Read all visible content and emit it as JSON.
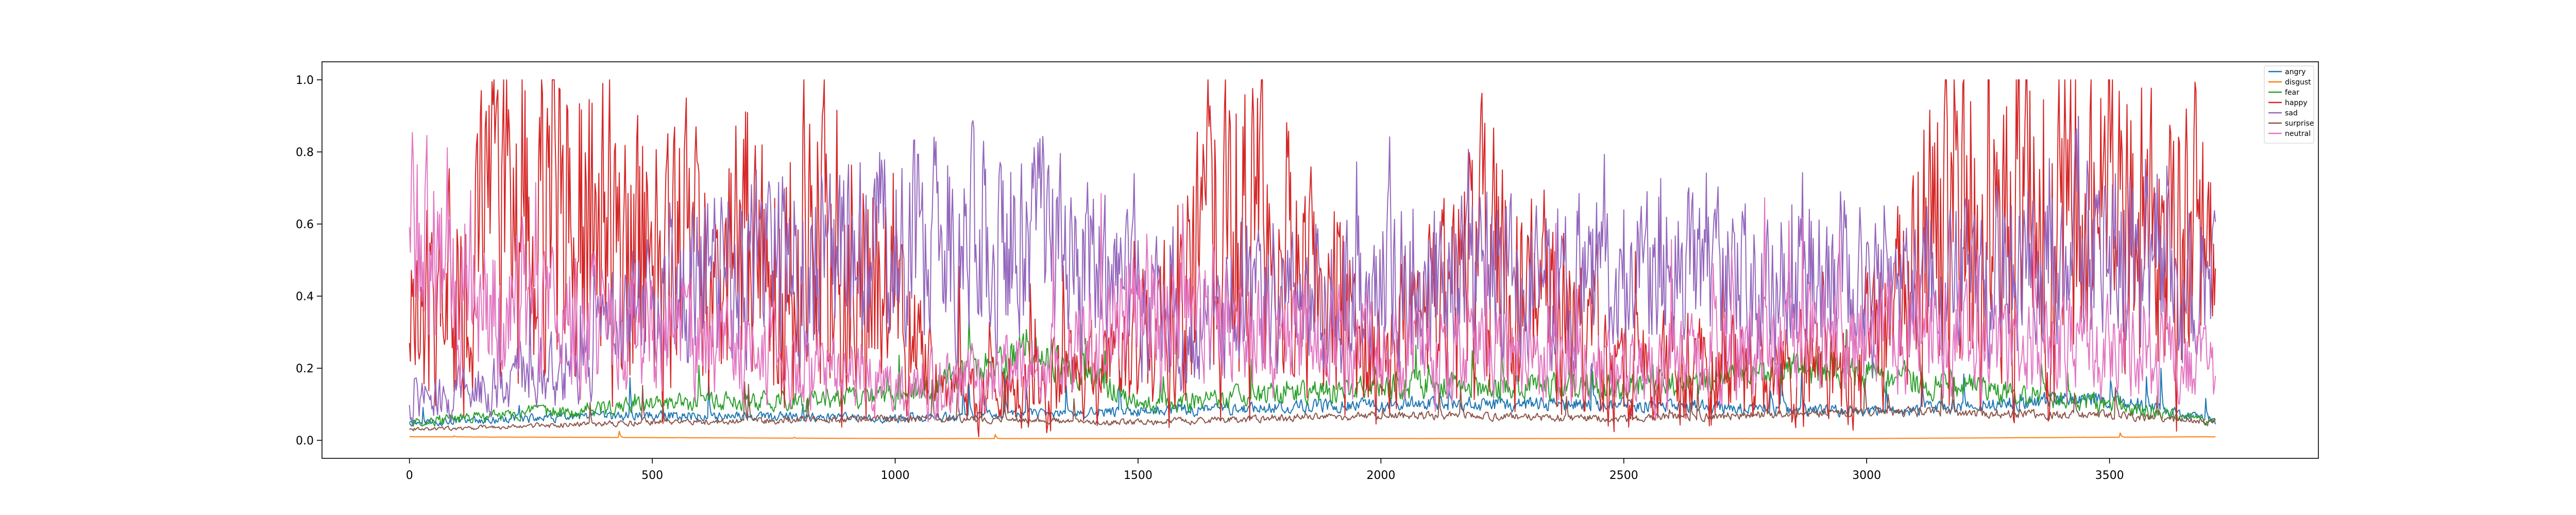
{
  "chart_data": {
    "type": "line",
    "title": "",
    "xlabel": "",
    "ylabel": "",
    "xlim": [
      -180,
      3930
    ],
    "ylim": [
      -0.05,
      1.05
    ],
    "x_ticks": [
      0,
      500,
      1000,
      1500,
      2000,
      2500,
      3000,
      3500
    ],
    "y_ticks": [
      0.0,
      0.2,
      0.4,
      0.6,
      0.8,
      1.0
    ],
    "x_tick_labels": [
      "0",
      "500",
      "1000",
      "1500",
      "2000",
      "2500",
      "3000",
      "3500"
    ],
    "y_tick_labels": [
      "0.0",
      "0.2",
      "0.4",
      "0.6",
      "0.8",
      "1.0"
    ],
    "grid": false,
    "legend_position": "top-right",
    "n_points": 3720,
    "series": [
      {
        "name": "angry",
        "color": "#1f77b4",
        "segments": [
          [
            0,
            0.05
          ],
          [
            500,
            0.07
          ],
          [
            1000,
            0.06
          ],
          [
            1500,
            0.08
          ],
          [
            2000,
            0.1
          ],
          [
            2500,
            0.1
          ],
          [
            3000,
            0.08
          ],
          [
            3500,
            0.12
          ],
          [
            3719,
            0.05
          ]
        ]
      },
      {
        "name": "disgust",
        "color": "#ff7f0e",
        "segments": [
          [
            0,
            0.01
          ],
          [
            1000,
            0.005
          ],
          [
            2000,
            0.005
          ],
          [
            3000,
            0.005
          ],
          [
            3719,
            0.01
          ]
        ]
      },
      {
        "name": "fear",
        "color": "#2ca02c",
        "segments": [
          [
            0,
            0.05
          ],
          [
            500,
            0.1
          ],
          [
            1000,
            0.12
          ],
          [
            1300,
            0.25
          ],
          [
            1500,
            0.1
          ],
          [
            2000,
            0.15
          ],
          [
            2500,
            0.15
          ],
          [
            2900,
            0.2
          ],
          [
            3500,
            0.1
          ],
          [
            3719,
            0.05
          ]
        ]
      },
      {
        "name": "happy",
        "color": "#d62728",
        "segments": [
          [
            0,
            0.3
          ],
          [
            200,
            0.7
          ],
          [
            500,
            0.5
          ],
          [
            900,
            0.6
          ],
          [
            1100,
            0.1
          ],
          [
            1500,
            0.2
          ],
          [
            1700,
            0.7
          ],
          [
            2000,
            0.2
          ],
          [
            2200,
            0.5
          ],
          [
            2500,
            0.2
          ],
          [
            3000,
            0.2
          ],
          [
            3200,
            0.7
          ],
          [
            3500,
            0.6
          ],
          [
            3719,
            0.5
          ]
        ]
      },
      {
        "name": "sad",
        "color": "#9467bd",
        "segments": [
          [
            0,
            0.1
          ],
          [
            300,
            0.2
          ],
          [
            600,
            0.45
          ],
          [
            1000,
            0.55
          ],
          [
            1300,
            0.55
          ],
          [
            1600,
            0.3
          ],
          [
            2000,
            0.45
          ],
          [
            2400,
            0.45
          ],
          [
            2800,
            0.45
          ],
          [
            3100,
            0.4
          ],
          [
            3500,
            0.55
          ],
          [
            3719,
            0.4
          ]
        ]
      },
      {
        "name": "surprise",
        "color": "#8c564b",
        "segments": [
          [
            0,
            0.03
          ],
          [
            500,
            0.05
          ],
          [
            1000,
            0.06
          ],
          [
            1500,
            0.05
          ],
          [
            2000,
            0.07
          ],
          [
            2500,
            0.06
          ],
          [
            3000,
            0.08
          ],
          [
            3500,
            0.07
          ],
          [
            3719,
            0.05
          ]
        ]
      },
      {
        "name": "neutral",
        "color": "#e377c2",
        "segments": [
          [
            0,
            0.55
          ],
          [
            200,
            0.35
          ],
          [
            500,
            0.3
          ],
          [
            1000,
            0.15
          ],
          [
            1300,
            0.2
          ],
          [
            1500,
            0.35
          ],
          [
            2000,
            0.25
          ],
          [
            2500,
            0.2
          ],
          [
            3000,
            0.3
          ],
          [
            3500,
            0.25
          ],
          [
            3719,
            0.2
          ]
        ]
      }
    ]
  }
}
